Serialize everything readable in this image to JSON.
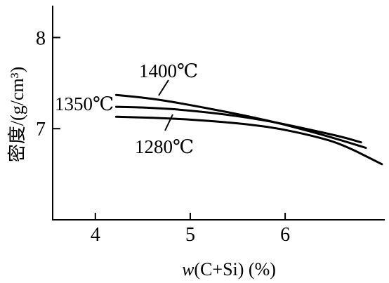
{
  "chart_data": {
    "type": "line",
    "xlabel_var": "w",
    "xlabel_rest": "(C+Si) (%)",
    "ylabel": "密度/(g/cm³)",
    "xlim": [
      3.55,
      7.05
    ],
    "ylim": [
      6.0,
      8.35
    ],
    "xticks": [
      4,
      5,
      6
    ],
    "yticks": [
      7,
      8
    ],
    "grid": false,
    "series": [
      {
        "name": "1400℃",
        "x": [
          4.22,
          4.6,
          5.0,
          5.5,
          5.9,
          6.3,
          6.6,
          6.85
        ],
        "y": [
          7.37,
          7.33,
          7.26,
          7.16,
          7.07,
          6.96,
          6.87,
          6.79
        ]
      },
      {
        "name": "1350℃",
        "x": [
          4.22,
          4.6,
          5.0,
          5.5,
          5.9,
          6.3,
          6.6,
          6.8
        ],
        "y": [
          7.24,
          7.23,
          7.2,
          7.14,
          7.07,
          6.98,
          6.91,
          6.85
        ]
      },
      {
        "name": "1280℃",
        "x": [
          4.22,
          4.6,
          5.0,
          5.5,
          5.9,
          6.3,
          6.6,
          7.02
        ],
        "y": [
          7.13,
          7.12,
          7.1,
          7.06,
          7.01,
          6.92,
          6.83,
          6.61
        ]
      }
    ]
  }
}
